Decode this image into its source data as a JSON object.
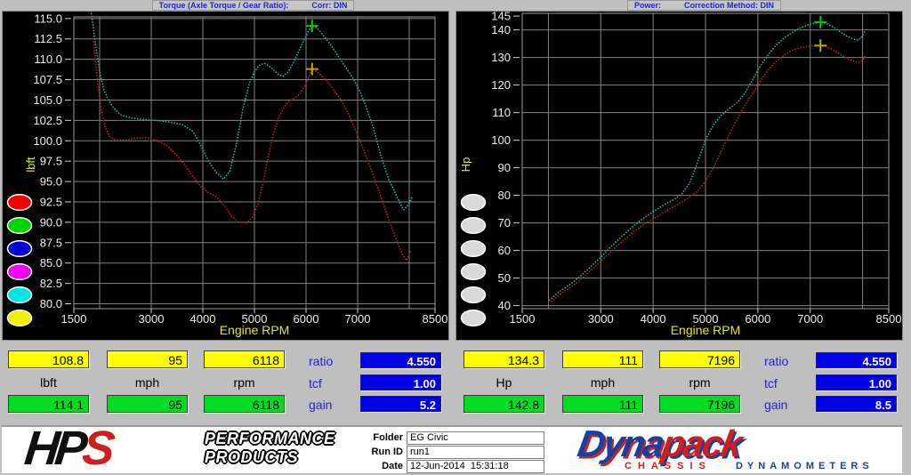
{
  "window": {
    "left_title": "Torque (Axle Torque / Gear Ratio):",
    "left_corr": "Corr: DIN",
    "right_title": "Power:",
    "right_corr": "Correction Method: DIN"
  },
  "chart_data": [
    {
      "type": "line",
      "title": "Torque (Axle Torque / Gear Ratio):",
      "correction": "Corr: DIN",
      "ylabel": "lbft",
      "xlabel": "Engine RPM",
      "xlim": [
        1500,
        8500
      ],
      "ylim": [
        79.4,
        115.2
      ],
      "yticks": [
        80,
        82.5,
        85,
        87.5,
        90,
        92.5,
        95,
        97.5,
        100,
        102.5,
        105,
        107.5,
        110,
        112.5,
        115
      ],
      "ytick_decimals": 1,
      "ygrid": [
        80,
        82.5,
        85,
        87.5,
        90,
        92.5,
        95,
        97.5,
        100,
        102.5,
        105,
        107.5,
        110,
        112.5,
        115
      ],
      "xticks": [
        1500,
        3000,
        4000,
        5000,
        6000,
        7000,
        8500
      ],
      "xgrid": [
        2000,
        3000,
        4000,
        5000,
        6000,
        7000,
        8000
      ],
      "grid": true,
      "series": [
        {
          "name": "run-cyan",
          "color": "#17b79c",
          "peak_marker": {
            "rpm": 6118,
            "value": 114.1,
            "color": "#00cc00"
          },
          "points": [
            [
              1840,
              115.6
            ],
            [
              1870,
              114.2
            ],
            [
              1910,
              112.3
            ],
            [
              1960,
              110.2
            ],
            [
              2010,
              108.2
            ],
            [
              2080,
              106.3
            ],
            [
              2160,
              105.1
            ],
            [
              2260,
              104.1
            ],
            [
              2400,
              103.2
            ],
            [
              2600,
              102.8
            ],
            [
              2850,
              102.6
            ],
            [
              3100,
              102.5
            ],
            [
              3350,
              102.3
            ],
            [
              3600,
              102.0
            ],
            [
              3800,
              101.2
            ],
            [
              3950,
              99.6
            ],
            [
              4100,
              97.6
            ],
            [
              4250,
              96.2
            ],
            [
              4400,
              95.3
            ],
            [
              4520,
              96.2
            ],
            [
              4650,
              99.5
            ],
            [
              4780,
              104.0
            ],
            [
              4900,
              107.0
            ],
            [
              5000,
              108.5
            ],
            [
              5100,
              109.3
            ],
            [
              5200,
              109.5
            ],
            [
              5320,
              109.0
            ],
            [
              5450,
              108.2
            ],
            [
              5550,
              107.9
            ],
            [
              5650,
              108.4
            ],
            [
              5750,
              109.5
            ],
            [
              5850,
              110.9
            ],
            [
              5950,
              112.2
            ],
            [
              6050,
              113.5
            ],
            [
              6118,
              114.1
            ],
            [
              6200,
              113.9
            ],
            [
              6300,
              113.2
            ],
            [
              6450,
              112.0
            ],
            [
              6600,
              110.6
            ],
            [
              6750,
              109.2
            ],
            [
              6900,
              107.8
            ],
            [
              7050,
              106.0
            ],
            [
              7150,
              104.4
            ],
            [
              7300,
              101.7
            ],
            [
              7450,
              98.2
            ],
            [
              7600,
              95.3
            ],
            [
              7750,
              93.3
            ],
            [
              7890,
              91.5
            ],
            [
              7980,
              92.1
            ],
            [
              8050,
              93.0
            ]
          ]
        },
        {
          "name": "run-red",
          "color": "#b22020",
          "peak_marker": {
            "rpm": 6118,
            "value": 108.8,
            "color": "#b8a800"
          },
          "points": [
            [
              1880,
              112.5
            ],
            [
              1915,
              110.0
            ],
            [
              1955,
              107.6
            ],
            [
              2000,
              105.2
            ],
            [
              2050,
              103.2
            ],
            [
              2120,
              101.4
            ],
            [
              2200,
              100.5
            ],
            [
              2300,
              100.1
            ],
            [
              2500,
              100.1
            ],
            [
              2700,
              100.3
            ],
            [
              2900,
              100.4
            ],
            [
              3100,
              100.1
            ],
            [
              3300,
              99.4
            ],
            [
              3500,
              98.2
            ],
            [
              3650,
              97.0
            ],
            [
              3800,
              95.7
            ],
            [
              3950,
              94.5
            ],
            [
              4100,
              93.7
            ],
            [
              4250,
              93.2
            ],
            [
              4400,
              92.2
            ],
            [
              4550,
              90.8
            ],
            [
              4700,
              90.0
            ],
            [
              4850,
              89.9
            ],
            [
              4970,
              90.7
            ],
            [
              5070,
              92.3
            ],
            [
              5170,
              95.0
            ],
            [
              5270,
              98.2
            ],
            [
              5370,
              100.9
            ],
            [
              5470,
              102.9
            ],
            [
              5570,
              104.1
            ],
            [
              5680,
              104.9
            ],
            [
              5800,
              105.3
            ],
            [
              5900,
              105.9
            ],
            [
              6000,
              107.0
            ],
            [
              6118,
              108.8
            ],
            [
              6230,
              108.4
            ],
            [
              6380,
              107.5
            ],
            [
              6530,
              106.3
            ],
            [
              6680,
              105.0
            ],
            [
              6830,
              103.2
            ],
            [
              6980,
              101.0
            ],
            [
              7130,
              98.7
            ],
            [
              7280,
              96.2
            ],
            [
              7430,
              93.5
            ],
            [
              7580,
              90.8
            ],
            [
              7730,
              88.2
            ],
            [
              7870,
              86.0
            ],
            [
              7950,
              85.3
            ],
            [
              8040,
              86.6
            ]
          ]
        }
      ]
    },
    {
      "type": "line",
      "title": "Power:",
      "correction": "Correction Method: DIN",
      "ylabel": "Hp",
      "xlabel": "Engine RPM",
      "xlim": [
        1500,
        8500
      ],
      "ylim": [
        38.9,
        146.0
      ],
      "yticks": [
        40,
        50,
        60,
        70,
        80,
        90,
        100,
        110,
        120,
        130,
        140,
        145
      ],
      "ytick_decimals": 0,
      "ygrid": [
        40,
        50,
        60,
        70,
        80,
        90,
        100,
        110,
        120,
        130,
        140
      ],
      "xticks": [
        1500,
        3000,
        4000,
        5000,
        6000,
        7000,
        8500
      ],
      "xgrid": [
        2000,
        3000,
        4000,
        5000,
        6000,
        7000,
        8000
      ],
      "grid": true,
      "series": [
        {
          "name": "run-cyan",
          "color": "#17b79c",
          "peak_marker": {
            "rpm": 7196,
            "value": 142.8,
            "color": "#00cc00"
          },
          "points": [
            [
              2020,
              42.0
            ],
            [
              2200,
              45.0
            ],
            [
              2400,
              47.5
            ],
            [
              2600,
              50.5
            ],
            [
              2800,
              54.0
            ],
            [
              3000,
              57.5
            ],
            [
              3200,
              61.5
            ],
            [
              3400,
              65.0
            ],
            [
              3600,
              68.5
            ],
            [
              3800,
              71.5
            ],
            [
              4000,
              74.0
            ],
            [
              4200,
              76.5
            ],
            [
              4400,
              78.5
            ],
            [
              4550,
              80.5
            ],
            [
              4700,
              84.5
            ],
            [
              4850,
              92.0
            ],
            [
              5000,
              100.0
            ],
            [
              5150,
              105.5
            ],
            [
              5300,
              109.0
            ],
            [
              5450,
              111.5
            ],
            [
              5600,
              113.5
            ],
            [
              5750,
              117.0
            ],
            [
              5900,
              122.0
            ],
            [
              6050,
              127.0
            ],
            [
              6200,
              131.0
            ],
            [
              6350,
              134.5
            ],
            [
              6500,
              137.0
            ],
            [
              6650,
              139.0
            ],
            [
              6800,
              140.6
            ],
            [
              6950,
              141.7
            ],
            [
              7080,
              142.4
            ],
            [
              7196,
              142.8
            ],
            [
              7330,
              142.2
            ],
            [
              7460,
              140.8
            ],
            [
              7590,
              139.0
            ],
            [
              7720,
              137.5
            ],
            [
              7850,
              136.5
            ],
            [
              7920,
              136.3
            ],
            [
              8000,
              137.8
            ],
            [
              8050,
              140.0
            ]
          ]
        },
        {
          "name": "run-red",
          "color": "#b22020",
          "peak_marker": {
            "rpm": 7196,
            "value": 134.3,
            "color": "#b8a800"
          },
          "points": [
            [
              2060,
              41.5
            ],
            [
              2250,
              44.5
            ],
            [
              2450,
              47.0
            ],
            [
              2650,
              50.0
            ],
            [
              2850,
              53.5
            ],
            [
              3050,
              57.0
            ],
            [
              3250,
              60.5
            ],
            [
              3450,
              64.0
            ],
            [
              3650,
              67.0
            ],
            [
              3850,
              69.8
            ],
            [
              4050,
              72.0
            ],
            [
              4250,
              74.3
            ],
            [
              4450,
              76.5
            ],
            [
              4650,
              78.8
            ],
            [
              4850,
              81.5
            ],
            [
              5000,
              85.0
            ],
            [
              5150,
              90.0
            ],
            [
              5300,
              96.0
            ],
            [
              5450,
              102.0
            ],
            [
              5600,
              107.5
            ],
            [
              5750,
              112.5
            ],
            [
              5900,
              117.0
            ],
            [
              6050,
              121.5
            ],
            [
              6200,
              125.5
            ],
            [
              6350,
              128.5
            ],
            [
              6500,
              130.8
            ],
            [
              6650,
              132.5
            ],
            [
              6800,
              133.5
            ],
            [
              6950,
              134.0
            ],
            [
              7080,
              134.2
            ],
            [
              7196,
              134.3
            ],
            [
              7330,
              133.8
            ],
            [
              7460,
              132.5
            ],
            [
              7600,
              130.8
            ],
            [
              7730,
              129.3
            ],
            [
              7860,
              128.4
            ],
            [
              7940,
              128.2
            ],
            [
              8010,
              129.0
            ],
            [
              8050,
              130.5
            ]
          ]
        }
      ]
    }
  ],
  "panel_buttons": {
    "left": [
      "#f20000",
      "#00d400",
      "#0000d4",
      "#f000f0",
      "#00e6e6",
      "#f0f000"
    ],
    "right": [
      "#d9d9d9",
      "#d9d9d9",
      "#d9d9d9",
      "#d9d9d9",
      "#d9d9d9",
      "#d9d9d9"
    ]
  },
  "readouts": [
    {
      "top": [
        "108.8",
        "95",
        "6118"
      ],
      "units": [
        "lbft",
        "mph",
        "rpm"
      ],
      "bottom": [
        "114.1",
        "95",
        "6118"
      ],
      "params": [
        {
          "label": "ratio",
          "value": "4.550"
        },
        {
          "label": "tcf",
          "value": "1.00"
        },
        {
          "label": "gain",
          "value": "5.2"
        }
      ]
    },
    {
      "top": [
        "134.3",
        "111",
        "7196"
      ],
      "units": [
        "Hp",
        "mph",
        "rpm"
      ],
      "bottom": [
        "142.8",
        "111",
        "7196"
      ],
      "params": [
        {
          "label": "ratio",
          "value": "4.550"
        },
        {
          "label": "tcf",
          "value": "1.00"
        },
        {
          "label": "gain",
          "value": "8.5"
        }
      ]
    }
  ],
  "colors": {
    "top_row_fill": "#ffff00",
    "bottom_row_fill": "#00dd22",
    "param_fill": "#0000e8",
    "accent_blue_text": "#2222cc"
  },
  "footer": {
    "hps": {
      "hp": "HP",
      "s": "S",
      "line1": "PERFORMANCE",
      "line2": "PRODUCTS"
    },
    "fields": [
      {
        "label": "Folder",
        "value": "EG Civic"
      },
      {
        "label": "Run ID",
        "value": "run1"
      },
      {
        "label": "Date",
        "value": "12-Jun-2014  15:31:18"
      }
    ],
    "dynapack": {
      "main1": "Dyna",
      "main2": "pack",
      "sub1": "CHASSIS",
      "sub2": "DYNAMOMETERS"
    }
  }
}
